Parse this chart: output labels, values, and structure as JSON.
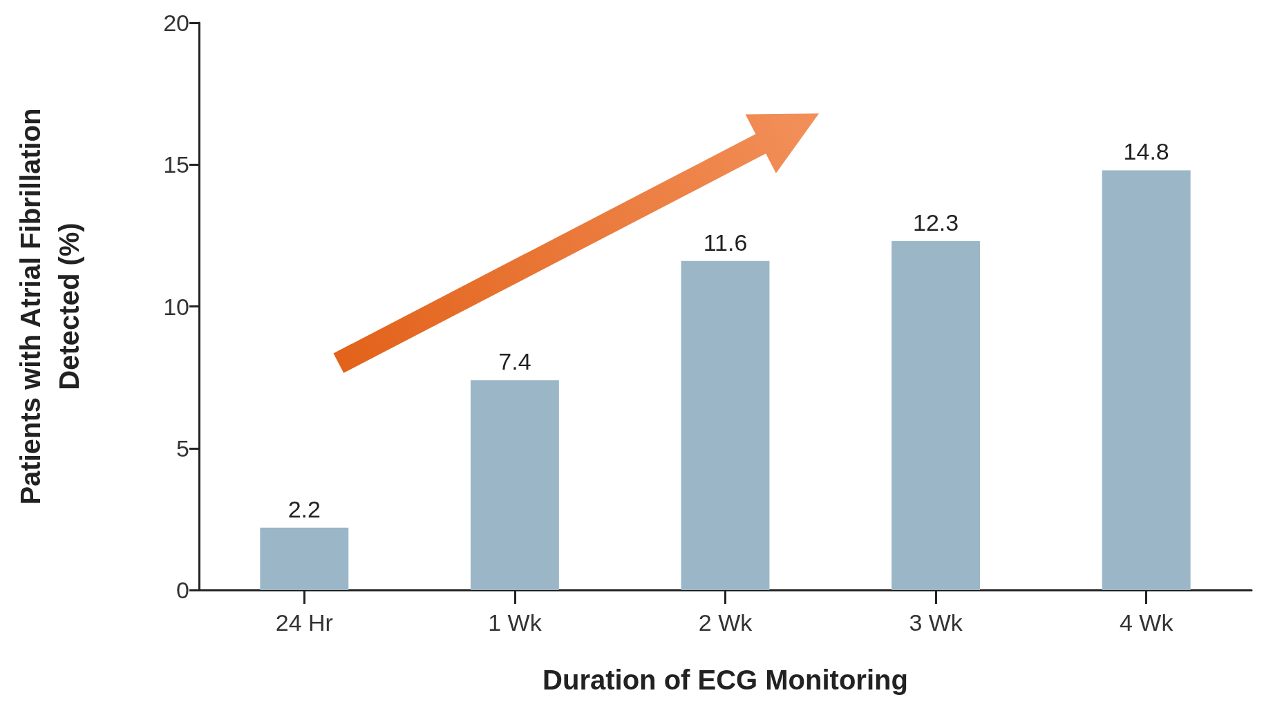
{
  "chart_data": {
    "type": "bar",
    "xlabel": "Duration of ECG Monitoring",
    "ylabel": "Patients with Atrial Fibrillation\nDetected (%)",
    "categories": [
      "24 Hr",
      "1 Wk",
      "2 Wk",
      "3 Wk",
      "4 Wk"
    ],
    "values": [
      2.2,
      7.4,
      11.6,
      12.3,
      14.8
    ],
    "color": "#9bb7c7",
    "ylim": [
      0,
      20
    ],
    "yticks": [
      0,
      5,
      10,
      15,
      20
    ],
    "grid": false,
    "data_labels": true
  }
}
